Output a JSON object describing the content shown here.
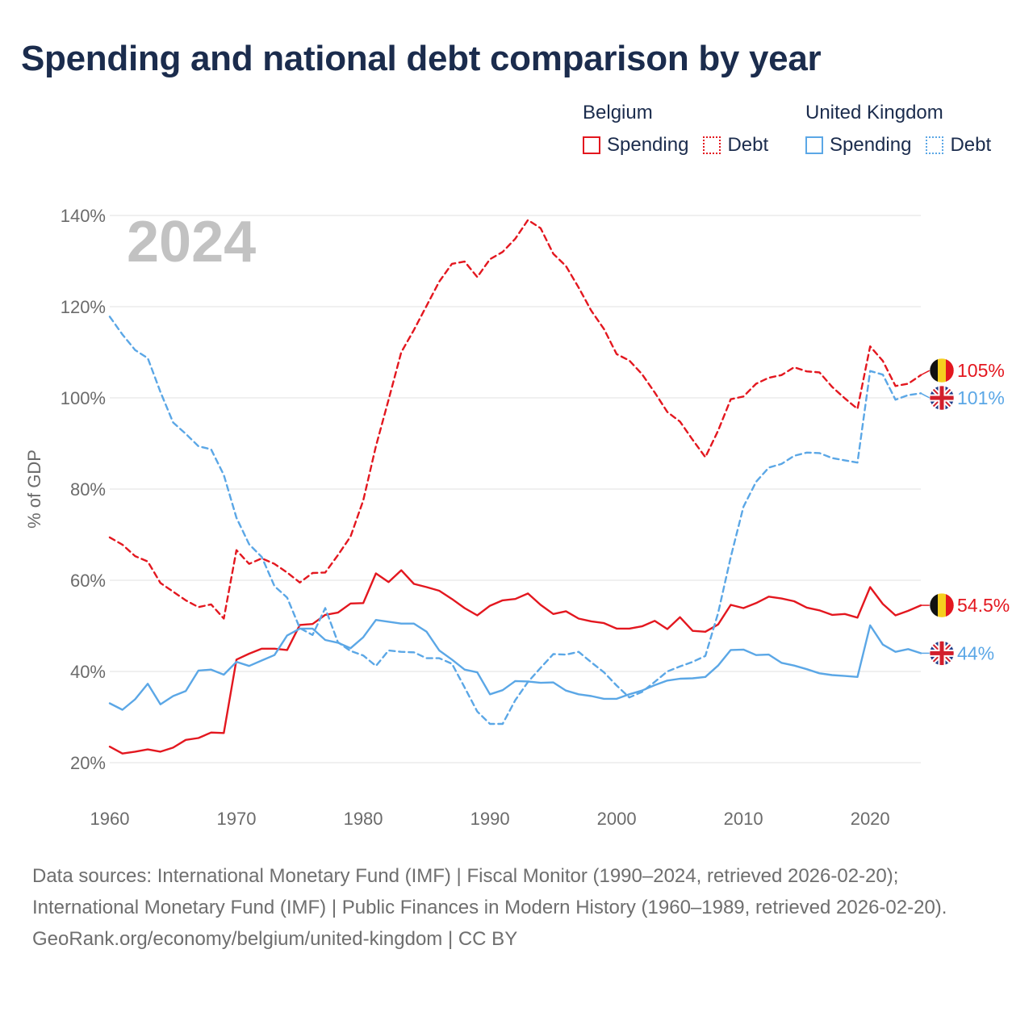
{
  "title": "Spending and national debt comparison by year",
  "legend": {
    "groups": [
      {
        "name": "Belgium",
        "items": [
          {
            "label": "Spending"
          },
          {
            "label": "Debt"
          }
        ]
      },
      {
        "name": "United Kingdom",
        "items": [
          {
            "label": "Spending"
          },
          {
            "label": "Debt"
          }
        ]
      }
    ]
  },
  "colors": {
    "belgium": "#e3171f",
    "uk": "#5ba7e6",
    "grid": "#e6e6e6",
    "year_watermark": "#c2c2c2"
  },
  "sources": {
    "line1": "Data sources: International Monetary Fund (IMF) | Fiscal Monitor (1990–2024, retrieved 2026-02-20); International Monetary Fund (IMF) | Public Finances in Modern History (1960–1989, retrieved 2026-02-20).",
    "line2": "GeoRank.org/economy/belgium/united-kingdom | CC BY"
  },
  "chart_data": {
    "type": "line",
    "ylabel": "% of GDP",
    "xlabel": "",
    "year_watermark": "2024",
    "ylim": [
      17,
      145
    ],
    "xlim": [
      1960,
      2024
    ],
    "yticks": [
      20,
      40,
      60,
      80,
      100,
      120,
      140
    ],
    "ytick_labels": [
      "20%",
      "40%",
      "60%",
      "80%",
      "100%",
      "120%",
      "140%"
    ],
    "xticks": [
      1960,
      1970,
      1980,
      1990,
      2000,
      2010,
      2020
    ],
    "xtick_labels": [
      "1960",
      "1970",
      "1980",
      "1990",
      "2000",
      "2010",
      "2020"
    ],
    "grid": true,
    "x": [
      1960,
      1961,
      1962,
      1963,
      1964,
      1965,
      1966,
      1967,
      1968,
      1969,
      1970,
      1971,
      1972,
      1973,
      1974,
      1975,
      1976,
      1977,
      1978,
      1979,
      1980,
      1981,
      1982,
      1983,
      1984,
      1985,
      1986,
      1987,
      1988,
      1989,
      1990,
      1991,
      1992,
      1993,
      1994,
      1995,
      1996,
      1997,
      1998,
      1999,
      2000,
      2001,
      2002,
      2003,
      2004,
      2005,
      2006,
      2007,
      2008,
      2009,
      2010,
      2011,
      2012,
      2013,
      2014,
      2015,
      2016,
      2017,
      2018,
      2019,
      2020,
      2021,
      2022,
      2023,
      2024
    ],
    "series": [
      {
        "name": "Belgium Spending",
        "country": "belgium",
        "style": "solid",
        "values": [
          23.5,
          22.0,
          22.4,
          22.9,
          22.4,
          23.3,
          25.0,
          25.4,
          26.6,
          26.5,
          42.6,
          43.9,
          45.0,
          45.0,
          44.7,
          50.2,
          50.4,
          52.4,
          52.9,
          54.9,
          55.0,
          61.5,
          59.6,
          62.2,
          59.2,
          58.5,
          57.7,
          55.9,
          53.9,
          52.3,
          54.4,
          55.6,
          55.9,
          57.1,
          54.6,
          52.6,
          53.2,
          51.6,
          51.0,
          50.6,
          49.4,
          49.4,
          49.9,
          51.1,
          49.3,
          51.9,
          48.9,
          48.7,
          50.3,
          54.6,
          53.9,
          55.0,
          56.4,
          56.0,
          55.4,
          54.0,
          53.4,
          52.4,
          52.6,
          51.8,
          58.5,
          54.8,
          52.3,
          53.3,
          54.5
        ]
      },
      {
        "name": "Belgium Debt",
        "country": "belgium",
        "style": "dashed",
        "values": [
          69.4,
          67.8,
          65.3,
          64.1,
          59.4,
          57.5,
          55.6,
          54.1,
          54.7,
          51.6,
          66.6,
          63.6,
          64.8,
          63.6,
          61.7,
          59.5,
          61.6,
          61.7,
          65.5,
          69.6,
          77.5,
          89.4,
          99.6,
          110.0,
          114.9,
          120.2,
          125.5,
          129.4,
          129.9,
          126.5,
          130.4,
          132.0,
          134.9,
          139.0,
          137.2,
          131.6,
          128.9,
          124.2,
          119.1,
          115.1,
          109.6,
          108.2,
          105.2,
          101.2,
          96.9,
          94.8,
          90.8,
          87.0,
          92.8,
          99.7,
          100.3,
          103.1,
          104.4,
          105.0,
          106.7,
          105.8,
          105.6,
          102.4,
          99.9,
          97.6,
          111.3,
          108.1,
          102.6,
          103.1,
          105.0
        ]
      },
      {
        "name": "United Kingdom Spending",
        "country": "uk",
        "style": "solid",
        "values": [
          33.0,
          31.6,
          33.9,
          37.3,
          32.8,
          34.6,
          35.7,
          40.2,
          40.4,
          39.3,
          42.1,
          41.2,
          42.4,
          43.6,
          47.9,
          49.4,
          49.4,
          46.9,
          46.3,
          45.1,
          47.5,
          51.3,
          50.9,
          50.5,
          50.5,
          48.7,
          44.6,
          42.6,
          40.4,
          39.8,
          35.0,
          35.9,
          37.9,
          37.8,
          37.5,
          37.6,
          35.8,
          35.0,
          34.6,
          34.0,
          34.0,
          35.0,
          35.8,
          37.0,
          38.0,
          38.4,
          38.5,
          38.8,
          41.3,
          44.7,
          44.8,
          43.6,
          43.7,
          41.9,
          41.3,
          40.5,
          39.6,
          39.2,
          39.0,
          38.8,
          50.1,
          45.9,
          44.3,
          44.9,
          44.0
        ]
      },
      {
        "name": "United Kingdom Debt",
        "country": "uk",
        "style": "dashed",
        "values": [
          117.8,
          113.9,
          110.5,
          108.7,
          101.3,
          94.6,
          92.1,
          89.4,
          88.7,
          83.1,
          73.7,
          67.9,
          65.1,
          58.7,
          56.2,
          49.5,
          48.0,
          53.9,
          46.4,
          44.5,
          43.5,
          41.2,
          44.6,
          44.3,
          44.2,
          42.9,
          42.9,
          41.7,
          36.5,
          31.2,
          28.5,
          28.5,
          33.7,
          37.7,
          40.8,
          43.8,
          43.7,
          44.3,
          42.0,
          39.8,
          36.9,
          34.3,
          35.5,
          37.7,
          40.0,
          41.1,
          42.1,
          43.4,
          52.8,
          65.1,
          76.1,
          81.6,
          84.7,
          85.5,
          87.3,
          88.0,
          87.9,
          86.8,
          86.3,
          85.8,
          105.9,
          105.1,
          99.6,
          100.6,
          101.0
        ]
      }
    ],
    "end_labels": [
      {
        "series": "Belgium Debt",
        "text": "105%",
        "value": 105
      },
      {
        "series": "United Kingdom Debt",
        "text": "101%",
        "value": 101
      },
      {
        "series": "Belgium Spending",
        "text": "54.5%",
        "value": 54.5
      },
      {
        "series": "United Kingdom Spending",
        "text": "44%",
        "value": 44
      }
    ]
  }
}
